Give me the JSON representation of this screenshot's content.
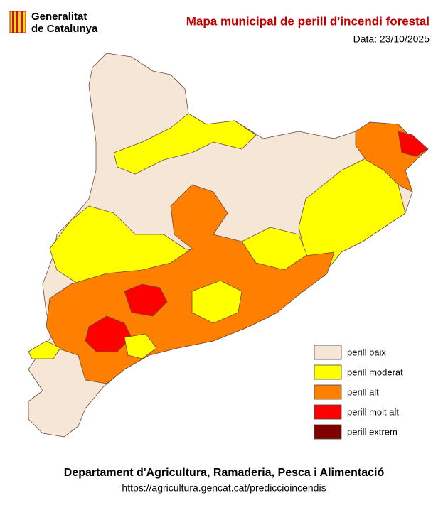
{
  "header": {
    "logo_line1": "Generalitat",
    "logo_line2": "de Catalunya",
    "title": "Mapa municipal de perill d'incendi forestal",
    "date": "Data: 23/10/2025"
  },
  "legend": [
    {
      "label": "perill baix",
      "color": "#f5e6d6"
    },
    {
      "label": "perill moderat",
      "color": "#ffff00"
    },
    {
      "label": "perill alt",
      "color": "#ff8000"
    },
    {
      "label": "perill molt alt",
      "color": "#ff0000"
    },
    {
      "label": "perill extrem",
      "color": "#800000"
    }
  ],
  "footer": {
    "department": "Departament d'Agricultura, Ramaderia, Pesca i Alimentació",
    "url": "https://agricultura.gencat.cat/prediccioincendis"
  }
}
